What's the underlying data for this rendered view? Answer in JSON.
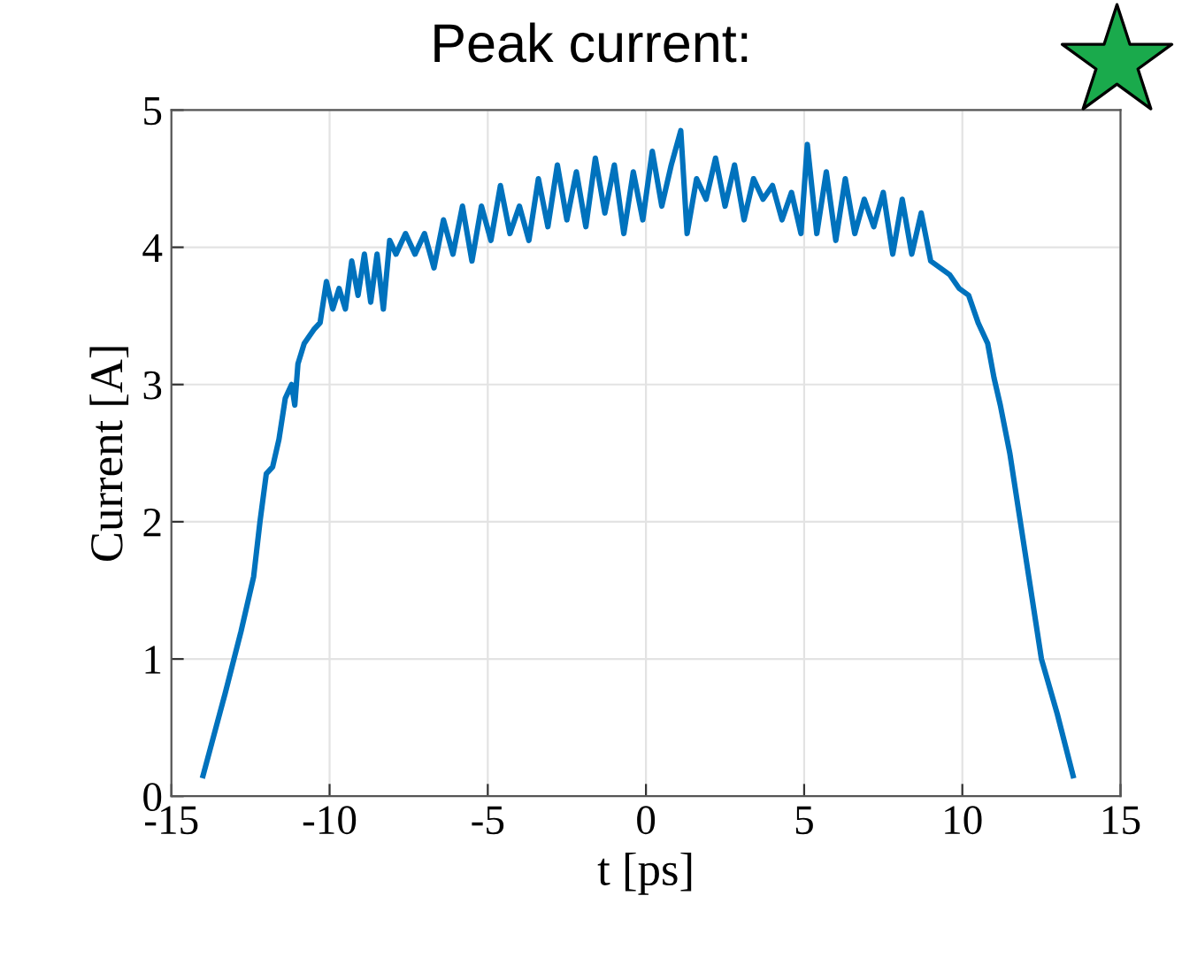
{
  "chart_data": {
    "type": "line",
    "title": "Peak current:",
    "xlabel": "t [ps]",
    "ylabel": "Current [A]",
    "xlim": [
      -15,
      15
    ],
    "xticks": [
      -15,
      -10,
      -5,
      0,
      5,
      10,
      15
    ],
    "ylim": [
      0,
      5
    ],
    "yticks": [
      0,
      1,
      2,
      3,
      4,
      5
    ],
    "grid": true,
    "line_style": "solid",
    "marker": "none",
    "series": [
      {
        "color": "#0072bd",
        "x": [
          -14,
          -13.3,
          -12.8,
          -12.4,
          -12.2,
          -12.0,
          -11.8,
          -11.6,
          -11.4,
          -11.2,
          -11.1,
          -11.0,
          -10.8,
          -10.5,
          -10.3,
          -10.1,
          -9.9,
          -9.7,
          -9.5,
          -9.3,
          -9.1,
          -8.9,
          -8.7,
          -8.5,
          -8.3,
          -8.1,
          -7.9,
          -7.6,
          -7.3,
          -7.0,
          -6.7,
          -6.4,
          -6.1,
          -5.8,
          -5.5,
          -5.2,
          -4.9,
          -4.6,
          -4.3,
          -4.0,
          -3.7,
          -3.4,
          -3.1,
          -2.8,
          -2.5,
          -2.2,
          -1.9,
          -1.6,
          -1.3,
          -1.0,
          -0.7,
          -0.4,
          -0.1,
          0.2,
          0.5,
          0.8,
          1.1,
          1.3,
          1.6,
          1.9,
          2.2,
          2.5,
          2.8,
          3.1,
          3.4,
          3.7,
          4.0,
          4.3,
          4.6,
          4.9,
          5.1,
          5.4,
          5.7,
          6.0,
          6.3,
          6.6,
          6.9,
          7.2,
          7.5,
          7.8,
          8.1,
          8.4,
          8.7,
          9.0,
          9.3,
          9.6,
          9.9,
          10.2,
          10.5,
          10.8,
          11.0,
          11.2,
          11.5,
          11.8,
          12.1,
          12.5,
          13.0,
          13.5
        ],
        "values": [
          0.15,
          0.75,
          1.2,
          1.6,
          2.0,
          2.35,
          2.4,
          2.6,
          2.9,
          3.0,
          2.85,
          3.15,
          3.3,
          3.4,
          3.45,
          3.75,
          3.55,
          3.7,
          3.55,
          3.9,
          3.65,
          3.95,
          3.6,
          3.95,
          3.55,
          4.05,
          3.95,
          4.1,
          3.95,
          4.1,
          3.85,
          4.2,
          3.95,
          4.3,
          3.9,
          4.3,
          4.05,
          4.45,
          4.1,
          4.3,
          4.05,
          4.5,
          4.15,
          4.6,
          4.2,
          4.55,
          4.15,
          4.65,
          4.25,
          4.6,
          4.1,
          4.55,
          4.2,
          4.7,
          4.3,
          4.6,
          4.85,
          4.1,
          4.5,
          4.35,
          4.65,
          4.3,
          4.6,
          4.2,
          4.5,
          4.35,
          4.45,
          4.2,
          4.4,
          4.1,
          4.75,
          4.1,
          4.55,
          4.05,
          4.5,
          4.1,
          4.35,
          4.15,
          4.4,
          3.95,
          4.35,
          3.95,
          4.25,
          3.9,
          3.85,
          3.8,
          3.7,
          3.65,
          3.45,
          3.3,
          3.05,
          2.85,
          2.5,
          2.05,
          1.6,
          1.0,
          0.6,
          0.15
        ]
      }
    ]
  }
}
